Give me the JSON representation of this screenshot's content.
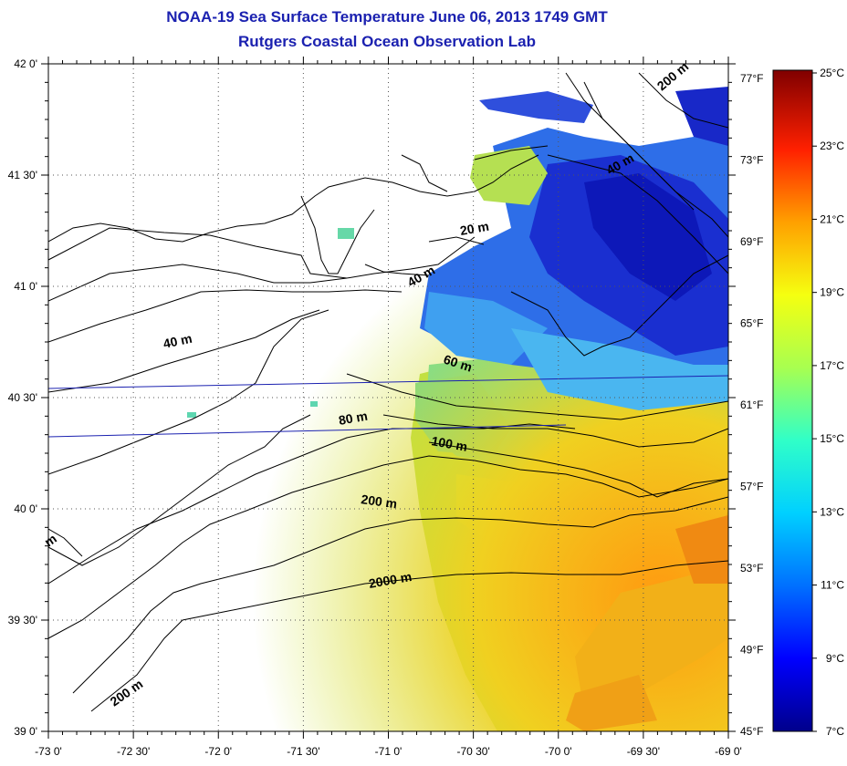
{
  "title": "NOAA-19 Sea Surface Temperature June 06, 2013 1749 GMT",
  "subtitle": "Rutgers Coastal Ocean Observation Lab",
  "map": {
    "lon_labels": [
      "-73 0'",
      "-72 30'",
      "-72 0'",
      "-71 30'",
      "-71 0'",
      "-70 30'",
      "-70 0'",
      "-69 30'",
      "-69 0'"
    ],
    "lat_labels": [
      "42 0'",
      "41 30'",
      "41 0'",
      "40 30'",
      "40 0'",
      "39 30'",
      "39 0'"
    ],
    "fahrenheit_labels": [
      "77°F",
      "73°F",
      "69°F",
      "65°F",
      "61°F",
      "57°F",
      "53°F",
      "49°F",
      "45°F"
    ],
    "contour_labels": [
      "200 m",
      "40 m",
      "20 m",
      "40 m",
      "40 m",
      "60 m",
      "80 m",
      "100 m",
      "200 m",
      "2000 m",
      "200 m",
      "m"
    ]
  },
  "colorbar": {
    "labels": [
      "25°C",
      "23°C",
      "21°C",
      "19°C",
      "17°C",
      "15°C",
      "13°C",
      "11°C",
      "9°C",
      "7°C"
    ],
    "min_c": 7,
    "max_c": 25,
    "colors": [
      "#00008b",
      "#0000ff",
      "#0080ff",
      "#00e5ff",
      "#40ffbf",
      "#bfff40",
      "#ffff00",
      "#ff8000",
      "#ff0000",
      "#800000"
    ]
  }
}
